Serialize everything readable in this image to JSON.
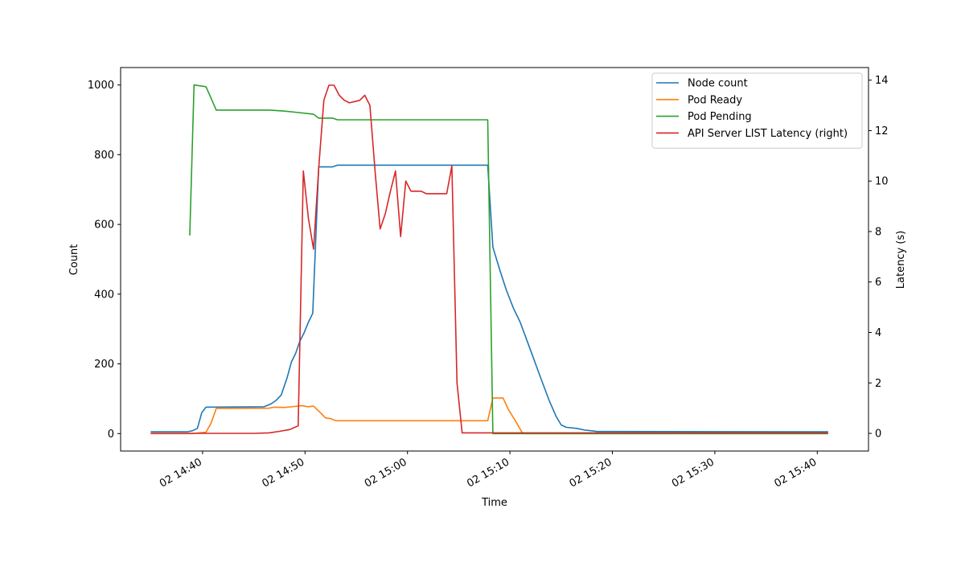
{
  "chart_data": {
    "type": "line",
    "xlabel": "Time",
    "ylabel": "Count",
    "y2label": "Latency (s)",
    "xlim": [
      "2024-01-02T14:32:00",
      "2024-01-02T15:45:00"
    ],
    "ylim": [
      -50,
      1050
    ],
    "y2lim": [
      -0.7,
      14.5
    ],
    "x_ticks": [
      "2024-01-02T14:40:00",
      "2024-01-02T14:50:00",
      "2024-01-02T15:00:00",
      "2024-01-02T15:10:00",
      "2024-01-02T15:20:00",
      "2024-01-02T15:30:00",
      "2024-01-02T15:40:00"
    ],
    "x_tick_labels": [
      "02 14:40",
      "02 14:50",
      "02 15:00",
      "02 15:10",
      "02 15:20",
      "02 15:30",
      "02 15:40"
    ],
    "y_ticks": [
      0,
      200,
      400,
      600,
      800,
      1000
    ],
    "y_tick_labels": [
      "0",
      "200",
      "400",
      "600",
      "800",
      "1000"
    ],
    "y2_ticks": [
      0,
      2,
      4,
      6,
      8,
      10,
      12,
      14
    ],
    "y2_tick_labels": [
      "0",
      "2",
      "4",
      "6",
      "8",
      "10",
      "12",
      "14"
    ],
    "grid": false,
    "legend_position": "top-right",
    "series": [
      {
        "name": "Node count",
        "color": "#1f77b4",
        "axis": "left",
        "points": [
          [
            "2024-01-02T14:35:00",
            5
          ],
          [
            "2024-01-02T14:38:30",
            5
          ],
          [
            "2024-01-02T14:39:00",
            8
          ],
          [
            "2024-01-02T14:39:30",
            15
          ],
          [
            "2024-01-02T14:39:55",
            60
          ],
          [
            "2024-01-02T14:40:20",
            76
          ],
          [
            "2024-01-02T14:46:00",
            77
          ],
          [
            "2024-01-02T14:46:40",
            85
          ],
          [
            "2024-01-02T14:47:10",
            95
          ],
          [
            "2024-01-02T14:47:40",
            110
          ],
          [
            "2024-01-02T14:48:15",
            160
          ],
          [
            "2024-01-02T14:48:40",
            205
          ],
          [
            "2024-01-02T14:49:05",
            230
          ],
          [
            "2024-01-02T14:49:30",
            265
          ],
          [
            "2024-01-02T14:49:55",
            290
          ],
          [
            "2024-01-02T14:50:20",
            320
          ],
          [
            "2024-01-02T14:50:45",
            345
          ],
          [
            "2024-01-02T14:51:20",
            765
          ],
          [
            "2024-01-02T14:52:40",
            765
          ],
          [
            "2024-01-02T14:53:10",
            770
          ],
          [
            "2024-01-02T15:07:50",
            770
          ],
          [
            "2024-01-02T15:08:20",
            535
          ],
          [
            "2024-01-02T15:09:00",
            470
          ],
          [
            "2024-01-02T15:09:40",
            410
          ],
          [
            "2024-01-02T15:10:20",
            360
          ],
          [
            "2024-01-02T15:11:00",
            320
          ],
          [
            "2024-01-02T15:12:00",
            240
          ],
          [
            "2024-01-02T15:13:00",
            160
          ],
          [
            "2024-01-02T15:13:50",
            95
          ],
          [
            "2024-01-02T15:14:30",
            50
          ],
          [
            "2024-01-02T15:15:00",
            25
          ],
          [
            "2024-01-02T15:15:30",
            18
          ],
          [
            "2024-01-02T15:16:30",
            15
          ],
          [
            "2024-01-02T15:17:20",
            10
          ],
          [
            "2024-01-02T15:18:00",
            8
          ],
          [
            "2024-01-02T15:18:30",
            6
          ],
          [
            "2024-01-02T15:41:00",
            5
          ]
        ]
      },
      {
        "name": "Pod Ready",
        "color": "#ff7f0e",
        "axis": "left",
        "points": [
          [
            "2024-01-02T14:35:00",
            0
          ],
          [
            "2024-01-02T14:39:00",
            0
          ],
          [
            "2024-01-02T14:40:20",
            4
          ],
          [
            "2024-01-02T14:40:50",
            30
          ],
          [
            "2024-01-02T14:41:20",
            72
          ],
          [
            "2024-01-02T14:46:30",
            73
          ],
          [
            "2024-01-02T14:47:00",
            76
          ],
          [
            "2024-01-02T14:48:00",
            75
          ],
          [
            "2024-01-02T14:49:00",
            78
          ],
          [
            "2024-01-02T14:49:40",
            80
          ],
          [
            "2024-01-02T14:50:20",
            77
          ],
          [
            "2024-01-02T14:50:50",
            79
          ],
          [
            "2024-01-02T14:51:30",
            60
          ],
          [
            "2024-01-02T14:52:00",
            45
          ],
          [
            "2024-01-02T14:52:30",
            43
          ],
          [
            "2024-01-02T14:53:00",
            37
          ],
          [
            "2024-01-02T15:07:50",
            37
          ],
          [
            "2024-01-02T15:08:20",
            102
          ],
          [
            "2024-01-02T15:09:20",
            102
          ],
          [
            "2024-01-02T15:09:50",
            70
          ],
          [
            "2024-01-02T15:10:40",
            30
          ],
          [
            "2024-01-02T15:11:15",
            0
          ],
          [
            "2024-01-02T15:41:00",
            0
          ]
        ]
      },
      {
        "name": "Pod Pending",
        "color": "#2ca02c",
        "axis": "left",
        "points": [
          [
            "2024-01-02T14:38:45",
            570
          ],
          [
            "2024-01-02T14:39:10",
            1000
          ],
          [
            "2024-01-02T14:40:20",
            995
          ],
          [
            "2024-01-02T14:40:50",
            962
          ],
          [
            "2024-01-02T14:41:20",
            928
          ],
          [
            "2024-01-02T14:46:30",
            928
          ],
          [
            "2024-01-02T14:47:00",
            927
          ],
          [
            "2024-01-02T14:48:00",
            925
          ],
          [
            "2024-01-02T14:49:00",
            922
          ],
          [
            "2024-01-02T14:50:50",
            916
          ],
          [
            "2024-01-02T14:51:20",
            905
          ],
          [
            "2024-01-02T14:52:40",
            905
          ],
          [
            "2024-01-02T14:53:10",
            900
          ],
          [
            "2024-01-02T15:07:50",
            900
          ],
          [
            "2024-01-02T15:08:20",
            0
          ],
          [
            "2024-01-02T15:41:00",
            0
          ]
        ]
      },
      {
        "name": "API Server LIST Latency (right)",
        "color": "#d62728",
        "axis": "right",
        "points": [
          [
            "2024-01-02T14:35:00",
            0
          ],
          [
            "2024-01-02T14:45:00",
            0
          ],
          [
            "2024-01-02T14:46:30",
            0.02
          ],
          [
            "2024-01-02T14:47:30",
            0.08
          ],
          [
            "2024-01-02T14:48:30",
            0.15
          ],
          [
            "2024-01-02T14:49:20",
            0.3
          ],
          [
            "2024-01-02T14:49:50",
            10.4
          ],
          [
            "2024-01-02T14:50:20",
            8.5
          ],
          [
            "2024-01-02T14:50:50",
            7.3
          ],
          [
            "2024-01-02T14:51:20",
            10.5
          ],
          [
            "2024-01-02T14:51:50",
            13.2
          ],
          [
            "2024-01-02T14:52:20",
            13.8
          ],
          [
            "2024-01-02T14:52:50",
            13.8
          ],
          [
            "2024-01-02T14:53:20",
            13.4
          ],
          [
            "2024-01-02T14:53:50",
            13.2
          ],
          [
            "2024-01-02T14:54:20",
            13.1
          ],
          [
            "2024-01-02T14:55:20",
            13.2
          ],
          [
            "2024-01-02T14:55:50",
            13.4
          ],
          [
            "2024-01-02T14:56:20",
            13.0
          ],
          [
            "2024-01-02T14:56:50",
            10.4
          ],
          [
            "2024-01-02T14:57:20",
            8.1
          ],
          [
            "2024-01-02T14:57:50",
            8.7
          ],
          [
            "2024-01-02T14:58:20",
            9.6
          ],
          [
            "2024-01-02T14:58:50",
            10.4
          ],
          [
            "2024-01-02T14:59:20",
            7.8
          ],
          [
            "2024-01-02T14:59:50",
            10.0
          ],
          [
            "2024-01-02T15:00:20",
            9.6
          ],
          [
            "2024-01-02T15:01:20",
            9.6
          ],
          [
            "2024-01-02T15:01:50",
            9.5
          ],
          [
            "2024-01-02T15:03:50",
            9.5
          ],
          [
            "2024-01-02T15:04:20",
            10.6
          ],
          [
            "2024-01-02T15:04:50",
            2.0
          ],
          [
            "2024-01-02T15:05:20",
            0.02
          ],
          [
            "2024-01-02T15:41:00",
            0.02
          ]
        ]
      }
    ]
  }
}
